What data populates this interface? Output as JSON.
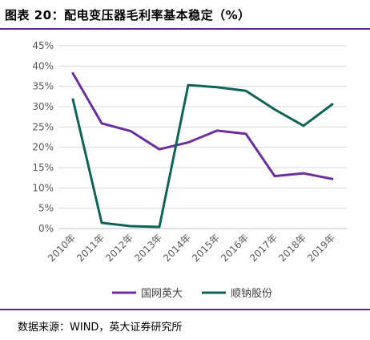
{
  "title": "图表 20：配电变压器毛利率基本稳定（%）",
  "source": "数据来源：WIND，英大证券研究所",
  "chart_data": {
    "type": "line",
    "x": [
      "2010年",
      "2011年",
      "2012年",
      "2013年",
      "2014年",
      "2015年",
      "2016年",
      "2017年",
      "2018年",
      "2019年"
    ],
    "y_ticks": [
      "0%",
      "5%",
      "10%",
      "15%",
      "20%",
      "25%",
      "30%",
      "35%",
      "40%",
      "45%"
    ],
    "ylim": [
      0,
      45
    ],
    "grid": true,
    "legend_position": "bottom",
    "series": [
      {
        "name": "国网英大",
        "color": "#6b2fa0",
        "values": [
          38.2,
          25.9,
          24.0,
          19.5,
          21.2,
          24.1,
          23.3,
          12.9,
          13.6,
          12.2
        ]
      },
      {
        "name": "顺钠股份",
        "color": "#0e6458",
        "values": [
          31.8,
          1.4,
          0.6,
          0.4,
          35.3,
          34.8,
          33.9,
          29.3,
          25.3,
          30.6
        ]
      }
    ]
  }
}
